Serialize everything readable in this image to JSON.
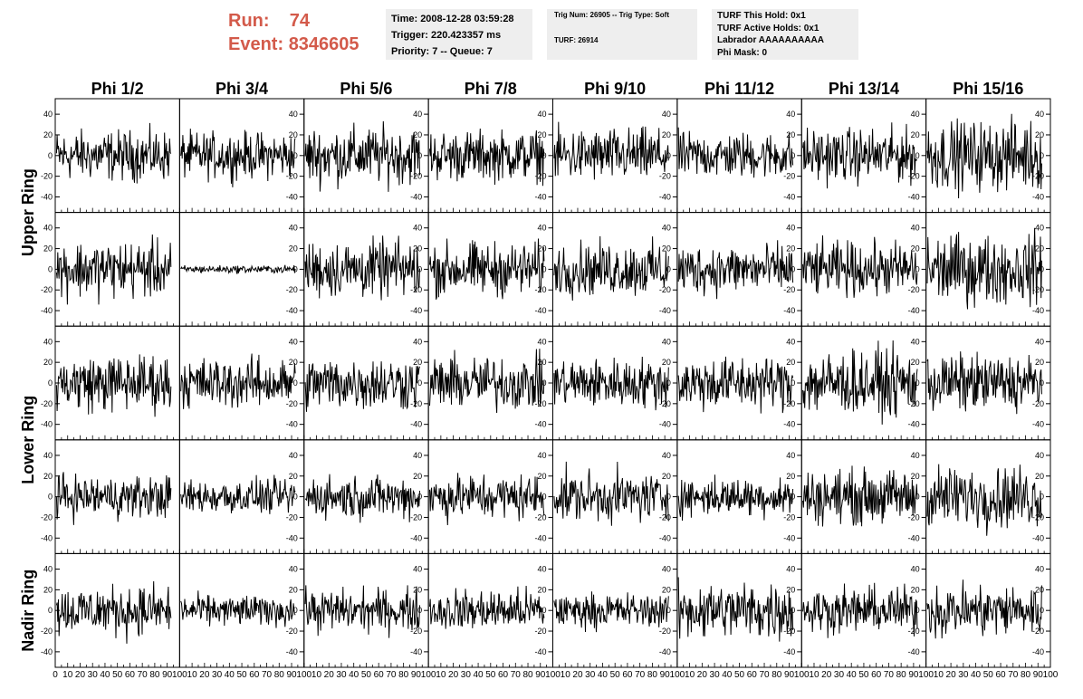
{
  "header": {
    "run_label": "Run:",
    "run_value": "74",
    "event_label": "Event:",
    "event_value": "8346605",
    "time": "Time: 2008-12-28 03:59:28",
    "trigger": "Trigger: 220.423357 ms",
    "priority": "Priority: 7 -- Queue: 7",
    "trig_num": "Trig Num: 26905 -- Trig Type: Soft",
    "turf": "TURF: 26914",
    "turf_this_hold": "TURF This Hold: 0x1",
    "turf_active_holds": "TURF Active Holds: 0x1",
    "labrador": "Labrador AAAAAAAAAA",
    "phi_mask": "Phi Mask: 0"
  },
  "chart_data": {
    "type": "line",
    "columns": [
      "Phi 1/2",
      "Phi 3/4",
      "Phi 5/6",
      "Phi 7/8",
      "Phi 9/10",
      "Phi 11/12",
      "Phi 13/14",
      "Phi 15/16"
    ],
    "row_labels": [
      {
        "label": "Upper Ring",
        "spans_rows": [
          0,
          1
        ]
      },
      {
        "label": "Lower Ring",
        "spans_rows": [
          2,
          3
        ]
      },
      {
        "label": "Nadir Ring",
        "spans_rows": [
          4
        ]
      }
    ],
    "xlim": [
      0,
      100
    ],
    "ylim": [
      -55,
      55
    ],
    "y_ticks": [
      -40,
      -20,
      0,
      20,
      40
    ],
    "x_ticks_major": [
      0,
      10,
      20,
      30,
      40,
      50,
      60,
      70,
      80,
      90,
      100
    ],
    "x_tick_labels": [
      "0",
      "10",
      "20",
      "30",
      "40",
      "50",
      "60",
      "70",
      "80",
      "90",
      "100"
    ],
    "y_tick_labels": [
      "-40",
      "-20",
      "0",
      "20",
      "40"
    ],
    "grid": false,
    "trace_amplitude": [
      [
        13,
        12,
        15,
        13,
        14,
        12,
        14,
        18
      ],
      [
        15,
        2,
        15,
        14,
        14,
        13,
        14,
        18
      ],
      [
        15,
        13,
        14,
        14,
        13,
        14,
        17,
        15
      ],
      [
        11,
        9,
        11,
        12,
        13,
        10,
        14,
        16
      ],
      [
        13,
        8,
        11,
        11,
        9,
        15,
        12,
        14
      ]
    ],
    "trace_color": "#000000"
  }
}
